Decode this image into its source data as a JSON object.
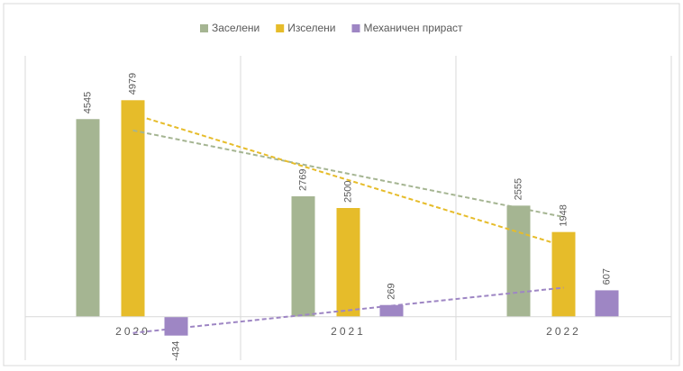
{
  "chart_data": {
    "type": "bar",
    "categories": [
      "2020",
      "2021",
      "2022"
    ],
    "series": [
      {
        "name": "Заселени",
        "color": "#a5b592",
        "values": [
          4545,
          2769,
          2555
        ]
      },
      {
        "name": "Изселени",
        "color": "#e6bc2a",
        "values": [
          4979,
          2500,
          1948
        ]
      },
      {
        "name": "Механичен прираст",
        "color": "#9e86c4",
        "values": [
          -434,
          269,
          607
        ]
      }
    ],
    "ylim": [
      -1000,
      6000
    ],
    "trendline": true,
    "legend": "top"
  }
}
